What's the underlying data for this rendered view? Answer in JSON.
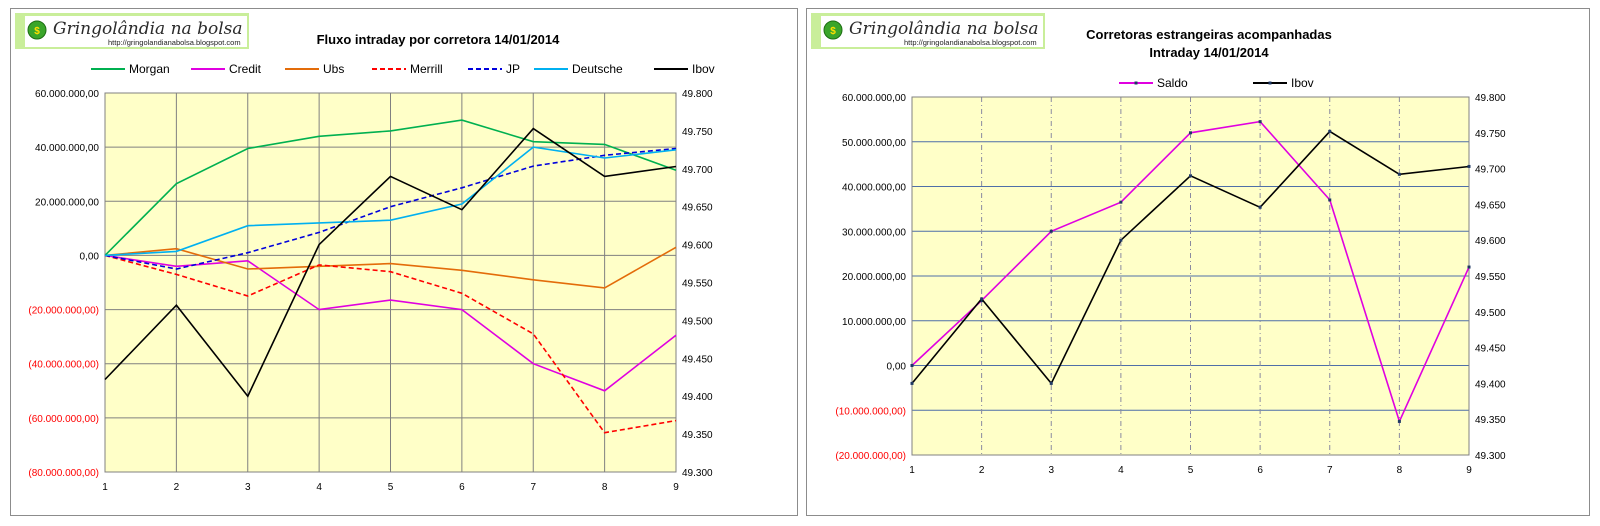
{
  "logo": {
    "title": "Gringolândia na bolsa",
    "url": "http://gringolandianabolsa.blogspot.com",
    "color": "#c9ee9a"
  },
  "chart_data": [
    {
      "type": "line",
      "title": "Fluxo intraday por corretora  14/01/2014",
      "categories": [
        "1",
        "2",
        "3",
        "4",
        "5",
        "6",
        "7",
        "8",
        "9"
      ],
      "y_left": {
        "ylim": [
          -80000000,
          60000000
        ],
        "ticks": [
          "60.000.000,00",
          "40.000.000,00",
          "20.000.000,00",
          "0,00",
          "(20.000.000,00)",
          "(40.000.000,00)",
          "(60.000.000,00)",
          "(80.000.000,00)"
        ],
        "negative_color": "#ff0000"
      },
      "y_right": {
        "ylim": [
          49300,
          49800
        ],
        "ticks": [
          "49.800",
          "49.750",
          "49.700",
          "49.650",
          "49.600",
          "49.550",
          "49.500",
          "49.450",
          "49.400",
          "49.350",
          "49.300"
        ]
      },
      "grid": true,
      "vertical_grid_style": "solid",
      "legend_position": "top",
      "plot_background": "#ffffc8",
      "series": [
        {
          "name": "Morgan",
          "axis": "left",
          "color": "#00b050",
          "dash": "solid",
          "values": [
            0,
            26500000,
            39500000,
            44000000,
            46000000,
            50000000,
            42000000,
            41000000,
            31500000
          ]
        },
        {
          "name": "Credit",
          "axis": "left",
          "color": "#e000e0",
          "dash": "solid",
          "values": [
            0,
            -4000000,
            -2000000,
            -20000000,
            -16500000,
            -20000000,
            -40000000,
            -50000000,
            -29500000
          ]
        },
        {
          "name": "Ubs",
          "axis": "left",
          "color": "#e36c0a",
          "dash": "solid",
          "values": [
            0,
            2500000,
            -5000000,
            -4000000,
            -3000000,
            -5500000,
            -9000000,
            -12000000,
            3000000
          ]
        },
        {
          "name": "Merrill",
          "axis": "left",
          "color": "#ff0000",
          "dash": "dashed",
          "values": [
            0,
            -7000000,
            -15000000,
            -3500000,
            -6000000,
            -14000000,
            -29000000,
            -65500000,
            -61000000
          ]
        },
        {
          "name": "JP",
          "axis": "left",
          "color": "#0000dd",
          "dash": "dashed",
          "values": [
            0,
            -5000000,
            1000000,
            8500000,
            18000000,
            25000000,
            33000000,
            37000000,
            39500000
          ]
        },
        {
          "name": "Deutsche",
          "axis": "left",
          "color": "#00b0f0",
          "dash": "solid",
          "values": [
            0,
            1500000,
            11000000,
            12000000,
            13000000,
            19000000,
            40000000,
            36000000,
            39000000
          ]
        },
        {
          "name": "Ibov",
          "axis": "right",
          "color": "#000000",
          "dash": "solid",
          "values": [
            49422,
            49520,
            49400,
            49600,
            49690,
            49646,
            49753,
            49690,
            49703
          ]
        }
      ]
    },
    {
      "type": "line",
      "title": "Corretoras estrangeiras acompanhadas Intraday  14/01/2014",
      "title_lines": [
        "Corretoras estrangeiras acompanhadas",
        "Intraday  14/01/2014"
      ],
      "categories": [
        "1",
        "2",
        "3",
        "4",
        "5",
        "6",
        "7",
        "8",
        "9"
      ],
      "y_left": {
        "ylim": [
          -20000000,
          60000000
        ],
        "ticks": [
          "60.000.000,00",
          "50.000.000,00",
          "40.000.000,00",
          "30.000.000,00",
          "20.000.000,00",
          "10.000.000,00",
          "0,00",
          "(10.000.000,00)",
          "(20.000.000,00)"
        ],
        "negative_color": "#ff0000"
      },
      "y_right": {
        "ylim": [
          49300,
          49800
        ],
        "ticks": [
          "49.800",
          "49.750",
          "49.700",
          "49.650",
          "49.600",
          "49.550",
          "49.500",
          "49.450",
          "49.400",
          "49.350",
          "49.300"
        ]
      },
      "grid": true,
      "vertical_grid_style": "dashed",
      "legend_position": "top",
      "plot_background": "#ffffc8",
      "series": [
        {
          "name": "Saldo",
          "axis": "left",
          "color": "#e000e0",
          "dash": "solid",
          "markers": true,
          "values": [
            0,
            14500000,
            30000000,
            36500000,
            52000000,
            54500000,
            37000000,
            -12500000,
            22000000
          ]
        },
        {
          "name": "Ibov",
          "axis": "right",
          "color": "#000000",
          "dash": "solid",
          "markers": true,
          "values": [
            49400,
            49518,
            49400,
            49600,
            49690,
            49646,
            49752,
            49692,
            49703
          ]
        }
      ]
    }
  ]
}
